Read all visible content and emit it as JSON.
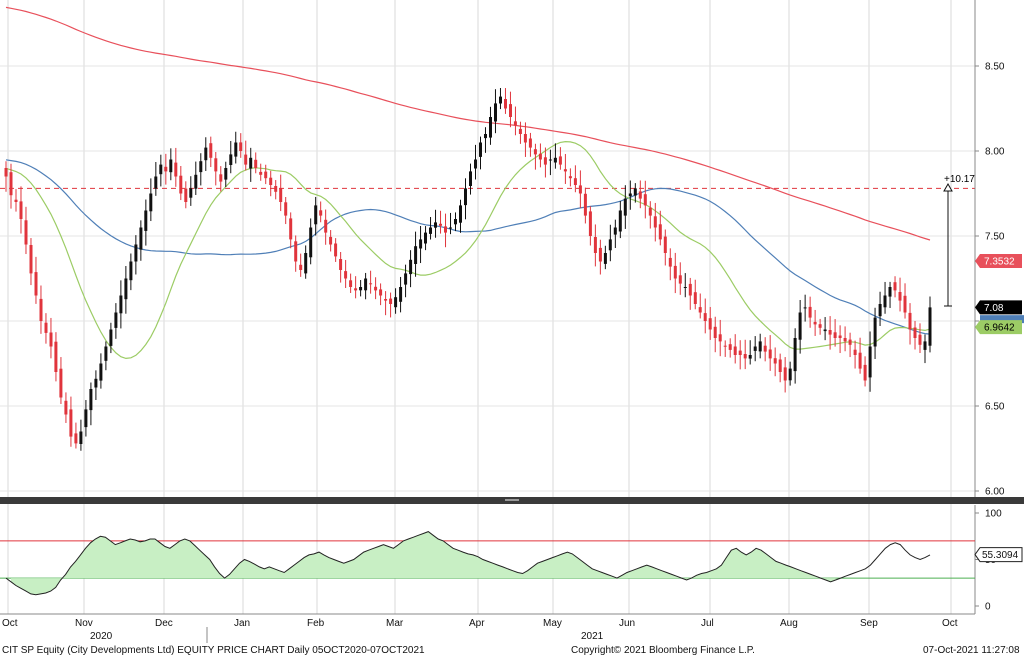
{
  "footer": {
    "left": "CIT SP Equity (City Developments Ltd) EQUITY PRICE CHART  Daily 05OCT2020-07OCT2021",
    "center": "Copyright© 2021 Bloomberg Finance L.P.",
    "right": "07-Oct-2021 11:27:08"
  },
  "chart_data": [
    {
      "type": "candlestick",
      "ylim": [
        6.0,
        8.9
      ],
      "yticks": [
        "6.00",
        "6.50",
        "7.00",
        "7.50",
        "8.00",
        "8.50"
      ],
      "month_labels": [
        "Oct",
        "Nov",
        "Dec",
        "Jan",
        "Feb",
        "Mar",
        "Apr",
        "May",
        "Jun",
        "Jul",
        "Aug",
        "Sep",
        "Oct"
      ],
      "year_labels": [
        "2020",
        "2021"
      ],
      "colors": {
        "up": "#111111",
        "down": "#e0343c",
        "ma_fast": "#9ccc65",
        "ma_mid": "#4f7fb7",
        "ma_slow": "#e8505b",
        "ref_line": "#e0343c"
      },
      "reference_level": 7.78,
      "annotation": "+10.17",
      "last_price": "7.08",
      "ma_labels": {
        "slow": "7.3532",
        "fast": "6.9642",
        "mid_partial": "7.005"
      },
      "closes": [
        7.85,
        7.74,
        7.7,
        7.6,
        7.45,
        7.28,
        7.15,
        7.0,
        6.93,
        6.85,
        6.7,
        6.55,
        6.45,
        6.32,
        6.28,
        6.35,
        6.48,
        6.6,
        6.66,
        6.75,
        6.85,
        6.95,
        7.05,
        7.15,
        7.25,
        7.35,
        7.45,
        7.55,
        7.65,
        7.75,
        7.85,
        7.92,
        7.88,
        7.95,
        7.85,
        7.75,
        7.7,
        7.78,
        7.86,
        7.94,
        8.02,
        7.96,
        7.88,
        7.82,
        7.9,
        7.98,
        8.05,
        8.0,
        7.92,
        7.96,
        7.9,
        7.86,
        7.84,
        7.8,
        7.76,
        7.7,
        7.62,
        7.48,
        7.35,
        7.3,
        7.4,
        7.55,
        7.68,
        7.62,
        7.52,
        7.45,
        7.38,
        7.3,
        7.25,
        7.2,
        7.18,
        7.2,
        7.25,
        7.22,
        7.18,
        7.15,
        7.12,
        7.1,
        7.14,
        7.2,
        7.28,
        7.36,
        7.44,
        7.48,
        7.52,
        7.55,
        7.58,
        7.56,
        7.52,
        7.55,
        7.6,
        7.68,
        7.78,
        7.88,
        7.95,
        8.05,
        8.1,
        8.2,
        8.28,
        8.32,
        8.25,
        8.2,
        8.15,
        8.1,
        8.05,
        8.02,
        7.98,
        7.95,
        7.92,
        7.95,
        7.96,
        7.92,
        7.88,
        7.84,
        7.8,
        7.75,
        7.62,
        7.5,
        7.4,
        7.35,
        7.4,
        7.48,
        7.55,
        7.65,
        7.72,
        7.75,
        7.78,
        7.72,
        7.68,
        7.62,
        7.55,
        7.48,
        7.4,
        7.32,
        7.25,
        7.22,
        7.2,
        7.15,
        7.1,
        7.05,
        7.0,
        6.95,
        6.9,
        6.88,
        6.85,
        6.83,
        6.8,
        6.8,
        6.78,
        6.8,
        6.85,
        6.88,
        6.82,
        6.78,
        6.75,
        6.7,
        6.65,
        6.72,
        6.9,
        7.05,
        7.08,
        7.02,
        6.98,
        6.96,
        6.95,
        6.92,
        6.9,
        6.9,
        6.88,
        6.86,
        6.8,
        6.72,
        6.65,
        6.85,
        7.02,
        7.1,
        7.15,
        7.2,
        7.18,
        7.12,
        7.05,
        6.95,
        6.9,
        6.86,
        6.88,
        7.08
      ],
      "rsi": {
        "ylim": [
          0,
          100
        ],
        "yticks": [
          "0",
          "50",
          "100"
        ],
        "upper": 70,
        "lower": 30,
        "last_value": "55.3094",
        "values": [
          30,
          26,
          22,
          19,
          16,
          13,
          12,
          13,
          14,
          16,
          20,
          28,
          34,
          42,
          48,
          55,
          62,
          68,
          72,
          75,
          74,
          70,
          66,
          68,
          70,
          72,
          71,
          69,
          70,
          72,
          72,
          68,
          64,
          62,
          66,
          70,
          72,
          70,
          65,
          60,
          55,
          50,
          42,
          35,
          30,
          34,
          40,
          46,
          50,
          48,
          45,
          42,
          40,
          42,
          40,
          38,
          36,
          40,
          44,
          48,
          52,
          55,
          56,
          58,
          55,
          52,
          50,
          48,
          46,
          48,
          50,
          54,
          58,
          60,
          62,
          64,
          66,
          64,
          62,
          66,
          70,
          72,
          74,
          76,
          78,
          80,
          76,
          72,
          70,
          66,
          62,
          60,
          58,
          56,
          55,
          53,
          50,
          48,
          46,
          44,
          42,
          40,
          38,
          36,
          35,
          38,
          42,
          46,
          48,
          50,
          52,
          54,
          56,
          58,
          56,
          52,
          48,
          44,
          40,
          38,
          36,
          34,
          32,
          30,
          33,
          36,
          38,
          40,
          42,
          44,
          42,
          40,
          38,
          36,
          34,
          32,
          30,
          28,
          30,
          33,
          35,
          36,
          38,
          40,
          44,
          52,
          60,
          62,
          58,
          55,
          58,
          62,
          60,
          56,
          52,
          48,
          46,
          44,
          42,
          40,
          38,
          36,
          34,
          32,
          30,
          28,
          26,
          28,
          30,
          32,
          34,
          36,
          38,
          40,
          44,
          50,
          56,
          62,
          66,
          68,
          66,
          60,
          55,
          52,
          50,
          52,
          55
        ]
      }
    }
  ]
}
